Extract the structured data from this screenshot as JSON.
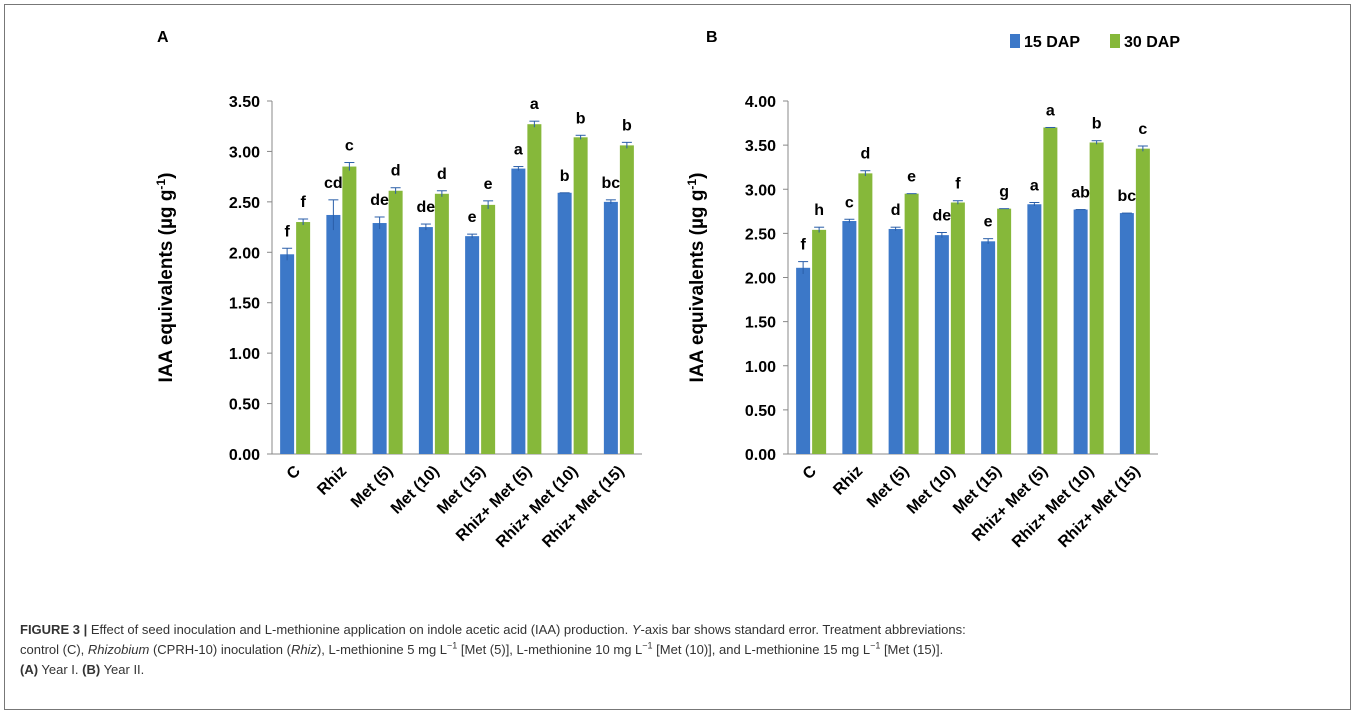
{
  "figure": {
    "panels": [
      "A",
      "B"
    ]
  },
  "chart_data": [
    {
      "type": "bar",
      "panel": "A",
      "categories": [
        "C",
        "Rhiz",
        "Met (5)",
        "Met (10)",
        "Met (15)",
        "Rhiz+ Met (5)",
        "Rhiz+ Met (10)",
        "Rhiz+ Met (15)"
      ],
      "series": [
        {
          "name": "15 DAP",
          "color": "#3c78c8",
          "values": [
            1.98,
            2.37,
            2.29,
            2.25,
            2.16,
            2.83,
            2.59,
            2.5
          ],
          "errors": [
            0.06,
            0.15,
            0.06,
            0.03,
            0.02,
            0.02,
            0.0,
            0.02
          ],
          "letters": [
            "f",
            "cd",
            "de",
            "de",
            "e",
            "a",
            "b",
            "bc"
          ]
        },
        {
          "name": "30 DAP",
          "color": "#86b83a",
          "values": [
            2.3,
            2.85,
            2.61,
            2.58,
            2.47,
            3.27,
            3.14,
            3.06
          ],
          "errors": [
            0.03,
            0.04,
            0.03,
            0.03,
            0.04,
            0.03,
            0.02,
            0.03
          ],
          "letters": [
            "f",
            "c",
            "d",
            "d",
            "e",
            "a",
            "b",
            "b"
          ]
        }
      ],
      "ylabel": "IAA equivalents (µg g",
      "ylabel_sup": "-1",
      "ylabel_end": ")",
      "ylim": [
        0,
        3.5
      ],
      "yticks": [
        "0.00",
        "0.50",
        "1.00",
        "1.50",
        "2.00",
        "2.50",
        "3.00",
        "3.50"
      ],
      "grid": false,
      "legend": "none"
    },
    {
      "type": "bar",
      "panel": "B",
      "categories": [
        "C",
        "Rhiz",
        "Met (5)",
        "Met (10)",
        "Met (15)",
        "Rhiz+ Met (5)",
        "Rhiz+ Met (10)",
        "Rhiz+ Met (15)"
      ],
      "series": [
        {
          "name": "15 DAP",
          "color": "#3c78c8",
          "values": [
            2.11,
            2.64,
            2.55,
            2.48,
            2.41,
            2.83,
            2.77,
            2.73
          ],
          "errors": [
            0.07,
            0.02,
            0.02,
            0.03,
            0.03,
            0.02,
            0.0,
            0.0
          ],
          "letters": [
            "f",
            "c",
            "d",
            "de",
            "e",
            "a",
            "ab",
            "bc"
          ]
        },
        {
          "name": "30 DAP",
          "color": "#86b83a",
          "values": [
            2.54,
            3.18,
            2.95,
            2.85,
            2.78,
            3.7,
            3.53,
            3.46
          ],
          "errors": [
            0.03,
            0.03,
            0.0,
            0.02,
            0.0,
            0.0,
            0.02,
            0.03
          ],
          "letters": [
            "h",
            "d",
            "e",
            "f",
            "g",
            "a",
            "b",
            "c"
          ]
        }
      ],
      "ylabel": "IAA equivalents (µg g",
      "ylabel_sup": "-1",
      "ylabel_end": ")",
      "ylim": [
        0,
        4.0
      ],
      "yticks": [
        "0.00",
        "0.50",
        "1.00",
        "1.50",
        "2.00",
        "2.50",
        "3.00",
        "3.50",
        "4.00"
      ],
      "grid": false,
      "legend": "top-right"
    }
  ],
  "caption": {
    "label": "FIGURE 3 |",
    "line1_a": " Effect of seed inoculation and L-methionine application on indole acetic acid (IAA) production. ",
    "line1_y": "Y",
    "line1_b": "-axis bar shows standard error. Treatment abbreviations:",
    "line2_a": "control (C), ",
    "line2_rhizobium": "Rhizobium",
    "line2_b": " (CPRH-10) inoculation (",
    "line2_rhiz": "Rhiz",
    "line2_c": "), L-methionine 5 mg L",
    "line2_sup1": "−1",
    "line2_d": " [Met (5)], L-methionine 10 mg L",
    "line2_sup2": "−1",
    "line2_e": " [Met (10)], and L-methionine 15 mg L",
    "line2_sup3": "−1",
    "line2_f": " [Met (15)].",
    "line3_a_ref": "(A)",
    "line3_a": " Year I. ",
    "line3_b_ref": "(B)",
    "line3_b": " Year II."
  }
}
